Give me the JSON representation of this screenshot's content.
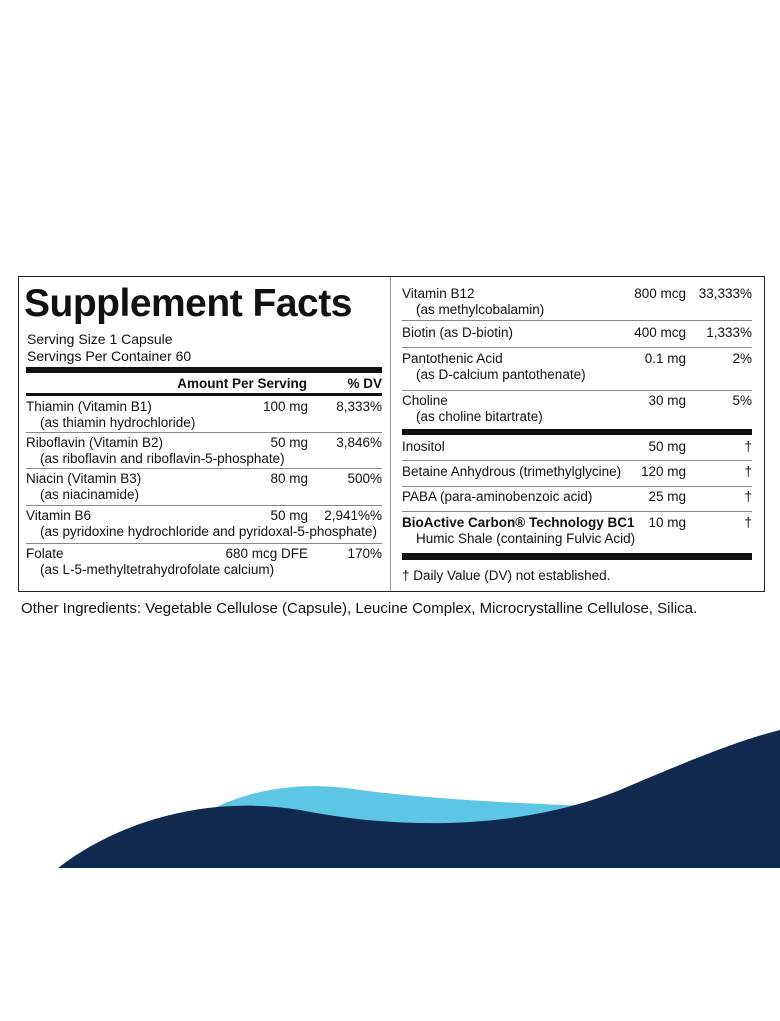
{
  "label": {
    "title": "Supplement Facts",
    "serving_size": "Serving Size 1 Capsule",
    "servings_per_container": "Servings Per Container 60",
    "header": {
      "amount": "Amount Per Serving",
      "dv": "% DV"
    },
    "left_rows": [
      {
        "name": "Thiamin (Vitamin B1)",
        "sub": "(as thiamin hydrochloride)",
        "amount": "100 mg",
        "dv": "8,333%"
      },
      {
        "name": "Riboflavin (Vitamin B2)",
        "sub": "(as riboflavin and riboflavin-5-phosphate)",
        "amount": "50 mg",
        "dv": "3,846%"
      },
      {
        "name": "Niacin (Vitamin B3)",
        "sub": "(as niacinamide)",
        "amount": "80 mg",
        "dv": "500%"
      },
      {
        "name": "Vitamin B6",
        "sub": "(as pyridoxine hydrochloride and pyridoxal-5-phosphate)",
        "amount": "50 mg",
        "dv": "2,941%%"
      },
      {
        "name": "Folate",
        "sub": "(as L-5-methyltetrahydrofolate calcium)",
        "amount": "680 mcg DFE",
        "dv": "170%"
      }
    ],
    "right_rows": [
      {
        "name": "Vitamin B12",
        "sub": "(as methylcobalamin)",
        "amount": "800 mcg",
        "dv": "33,333%"
      },
      {
        "name": "Biotin (as D-biotin)",
        "amount": "400 mcg",
        "dv": "1,333%"
      },
      {
        "name": "Pantothenic Acid",
        "sub": "(as D-calcium pantothenate)",
        "amount": "0.1 mg",
        "dv": "2%"
      },
      {
        "name": "Choline",
        "sub": "(as choline bitartrate)",
        "amount": "30 mg",
        "dv": "5%"
      },
      {
        "name": "Inositol",
        "amount": "50 mg",
        "dv": "†"
      },
      {
        "name": "Betaine Anhydrous (trimethylglycine)",
        "amount": "120 mg",
        "dv": "†"
      },
      {
        "name": "PABA (para-aminobenzoic acid)",
        "amount": "25 mg",
        "dv": "†"
      },
      {
        "name": "BioActive Carbon® Technology BC1",
        "sub": "Humic Shale (containing Fulvic Acid)",
        "amount": "10 mg",
        "dv": "†"
      }
    ],
    "footnote": "† Daily Value (DV) not established.",
    "other_ingredients": "Other Ingredients: Vegetable Cellulose (Capsule), Leucine Complex, Microcrystalline Cellulose, Silica."
  }
}
